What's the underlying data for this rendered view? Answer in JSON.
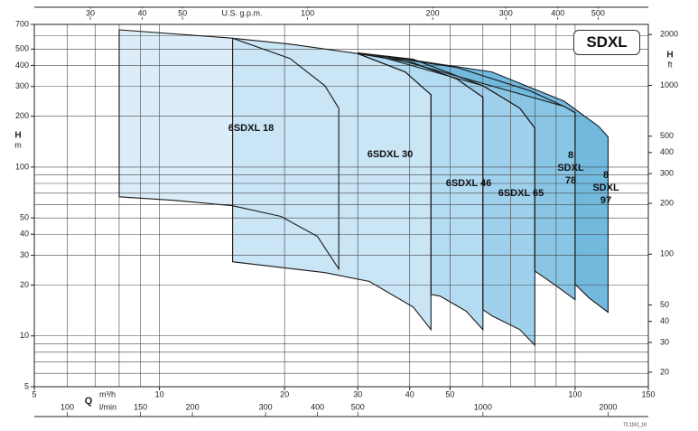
{
  "chart_data": {
    "type": "range",
    "badge": "SDXL",
    "footnote": "72.1161_10",
    "xlabel": "Q",
    "xunit": "m³/h",
    "x3unit": "l/min",
    "x2label": "U.S. g.p.m.",
    "ylabel": "H",
    "yunit": "m",
    "y2label": "H",
    "y2unit": "ft",
    "xscale": "log",
    "yscale": "log",
    "xlim": [
      5,
      150
    ],
    "xticks": [
      5,
      10,
      20,
      30,
      40,
      50,
      100,
      150
    ],
    "xgrid": [
      6,
      7,
      8,
      9,
      10,
      20,
      30,
      40,
      50,
      60,
      70,
      80,
      90,
      100
    ],
    "ylim": [
      5,
      700
    ],
    "yticks": [
      5,
      10,
      20,
      30,
      40,
      50,
      100,
      200,
      300,
      400,
      500,
      700
    ],
    "ygrid": [
      6,
      7,
      8,
      9,
      10,
      20,
      30,
      40,
      50,
      60,
      70,
      80,
      90,
      100,
      200,
      300,
      400,
      500,
      600
    ],
    "x2lim": [
      22.0,
      660.5
    ],
    "x2ticks": [
      30,
      40,
      50,
      100,
      200,
      300,
      400,
      500
    ],
    "x3lim": [
      83.3,
      2500
    ],
    "x3ticks": [
      100,
      150,
      200,
      300,
      400,
      500,
      1000,
      2000
    ],
    "y2lim": [
      16.4,
      2297
    ],
    "y2ticks": [
      20,
      30,
      40,
      50,
      100,
      200,
      300,
      400,
      500,
      1000,
      2000
    ],
    "series": [
      {
        "name": "6SDXL 18",
        "color": "#dcedf9",
        "x": [
          8,
          15,
          20.6,
          25,
          27,
          27,
          24,
          19.6,
          15,
          10.9,
          8
        ],
        "values": [
          650,
          580,
          440,
          303,
          223,
          24.9,
          38.8,
          51,
          59,
          63.5,
          66.7
        ]
      },
      {
        "name": "6SDXL 30",
        "color": "#c9e5f6",
        "x": [
          15,
          20.6,
          30,
          39,
          45,
          45,
          40.8,
          32,
          25,
          15
        ],
        "values": [
          580,
          535,
          470,
          366,
          268,
          10.9,
          14.8,
          21,
          23.7,
          27.5
        ]
      },
      {
        "name": "6SDXL 46",
        "color": "#b3dbf2",
        "x": [
          30,
          40.8,
          52,
          60,
          60,
          54.7,
          47.3,
          45,
          45,
          39
        ],
        "values": [
          470,
          414,
          332,
          259,
          10.9,
          14.0,
          17.2,
          17.6,
          268,
          366
        ]
      },
      {
        "name": "6SDXL 65",
        "color": "#9fd0ec",
        "x": [
          30,
          40.8,
          60,
          73.6,
          80,
          80,
          73.6,
          63.2,
          60,
          60,
          52,
          40.8
        ],
        "values": [
          475,
          435,
          303,
          223,
          170,
          8.8,
          10.9,
          13.1,
          14.3,
          259,
          332,
          414
        ]
      },
      {
        "name": "8 SDXL 78",
        "color": "#89c6e6",
        "x": [
          33,
          52,
          77.6,
          94,
          100,
          100,
          89,
          80,
          80,
          73.6,
          60
        ],
        "values": [
          460,
          389,
          284,
          229,
          210,
          16.4,
          20.2,
          24.2,
          170,
          223,
          303
        ]
      },
      {
        "name": "8 SDXL 97",
        "color": "#72b9de",
        "x": [
          35,
          63,
          94,
          114,
          120,
          120,
          108,
          100,
          100,
          94
        ],
        "values": [
          455,
          366,
          246,
          174,
          151,
          13.8,
          16.8,
          20.2,
          210,
          229
        ]
      }
    ]
  }
}
